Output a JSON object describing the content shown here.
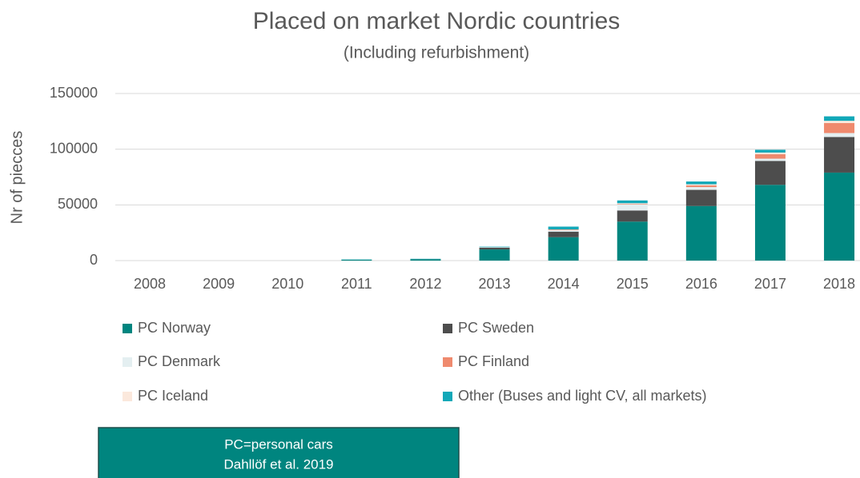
{
  "chart_data": {
    "type": "stacked_bar",
    "title": "Placed on market Nordic countries",
    "subtitle": "(Including refurbishment)",
    "y_label": "Nr of piecces",
    "categories": [
      "2008",
      "2009",
      "2010",
      "2011",
      "2012",
      "2013",
      "2014",
      "2015",
      "2016",
      "2017",
      "2018"
    ],
    "series": [
      {
        "name": "PC Norway",
        "color": "#00857f",
        "values": [
          0,
          0,
          0,
          800,
          1200,
          10000,
          21000,
          35000,
          49000,
          68000,
          79000
        ]
      },
      {
        "name": "PC Sweden",
        "color": "#4d4d4d",
        "values": [
          0,
          0,
          0,
          0,
          100,
          1500,
          5000,
          10000,
          14500,
          21500,
          32000
        ]
      },
      {
        "name": "PC Denmark",
        "color": "#e4eff1",
        "values": [
          0,
          0,
          0,
          0,
          0,
          300,
          1500,
          5500,
          2500,
          2000,
          3500
        ]
      },
      {
        "name": "PC Finland",
        "color": "#ef8a6e",
        "values": [
          0,
          0,
          0,
          0,
          0,
          100,
          500,
          500,
          1500,
          4000,
          9000
        ]
      },
      {
        "name": "PC Iceland",
        "color": "#fbe8dc",
        "values": [
          0,
          0,
          0,
          0,
          0,
          100,
          0,
          500,
          1000,
          1500,
          2000
        ]
      },
      {
        "name": "Other (Buses and light CV, all markets)",
        "color": "#12a8b8",
        "values": [
          0,
          0,
          0,
          200,
          300,
          500,
          2500,
          2500,
          2500,
          2500,
          4000
        ]
      }
    ],
    "ylim": [
      0,
      150000
    ],
    "yticks": [
      0,
      50000,
      100000,
      150000
    ],
    "grid": true,
    "annotations": [
      "PC=personal cars",
      "Dahllöf et al. 2019"
    ]
  }
}
